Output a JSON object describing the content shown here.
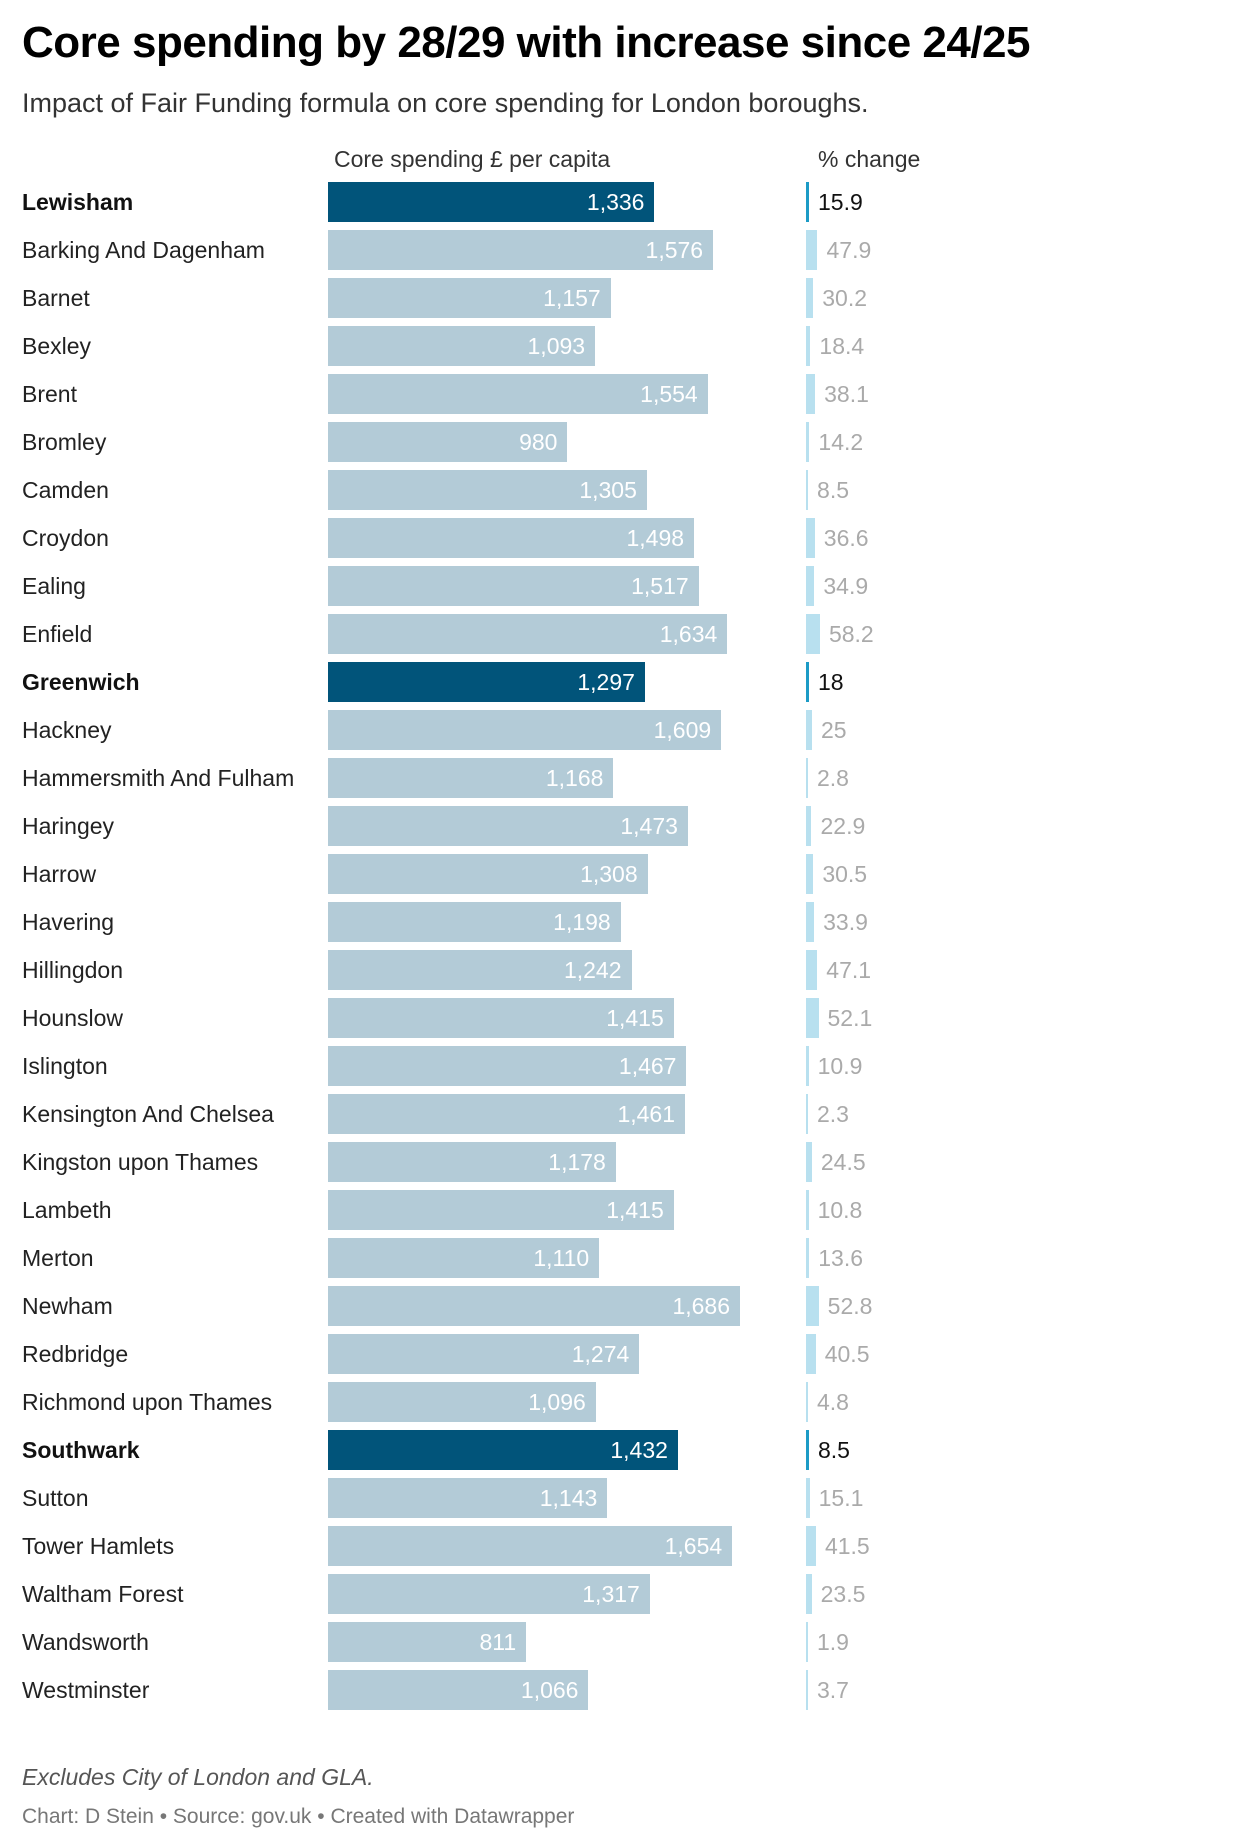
{
  "chart_data": {
    "type": "bar",
    "title": "Core spending by 28/29 with increase since 24/25",
    "subtitle": "Impact of Fair Funding formula on core spending for London boroughs.",
    "columns": [
      "Core spending £ per capita",
      "% change"
    ],
    "categories": [
      "Lewisham",
      "Barking And Dagenham",
      "Barnet",
      "Bexley",
      "Brent",
      "Bromley",
      "Camden",
      "Croydon",
      "Ealing",
      "Enfield",
      "Greenwich",
      "Hackney",
      "Hammersmith And Fulham",
      "Haringey",
      "Harrow",
      "Havering",
      "Hillingdon",
      "Hounslow",
      "Islington",
      "Kensington And Chelsea",
      "Kingston upon Thames",
      "Lambeth",
      "Merton",
      "Newham",
      "Redbridge",
      "Richmond upon Thames",
      "Southwark",
      "Sutton",
      "Tower Hamlets",
      "Waltham Forest",
      "Wandsworth",
      "Westminster"
    ],
    "highlighted": [
      "Lewisham",
      "Greenwich",
      "Southwark"
    ],
    "series": [
      {
        "name": "Core spending £ per capita",
        "values": [
          1336,
          1576,
          1157,
          1093,
          1554,
          980,
          1305,
          1498,
          1517,
          1634,
          1297,
          1609,
          1168,
          1473,
          1308,
          1198,
          1242,
          1415,
          1467,
          1461,
          1178,
          1415,
          1110,
          1686,
          1274,
          1096,
          1432,
          1143,
          1654,
          1317,
          811,
          1066
        ],
        "labels": [
          "1,336",
          "1,576",
          "1,157",
          "1,093",
          "1,554",
          "980",
          "1,305",
          "1,498",
          "1,517",
          "1,634",
          "1,297",
          "1,609",
          "1,168",
          "1,473",
          "1,308",
          "1,198",
          "1,242",
          "1,415",
          "1,467",
          "1,461",
          "1,178",
          "1,415",
          "1,110",
          "1,686",
          "1,274",
          "1,096",
          "1,432",
          "1,143",
          "1,654",
          "1,317",
          "811",
          "1,066"
        ]
      },
      {
        "name": "% change",
        "values": [
          15.9,
          47.9,
          30.2,
          18.4,
          38.1,
          14.2,
          8.5,
          36.6,
          34.9,
          58.2,
          18,
          25,
          2.8,
          22.9,
          30.5,
          33.9,
          47.1,
          52.1,
          10.9,
          2.3,
          24.5,
          10.8,
          13.6,
          52.8,
          40.5,
          4.8,
          8.5,
          15.1,
          41.5,
          23.5,
          1.9,
          3.7
        ],
        "labels": [
          "15.9",
          "47.9",
          "30.2",
          "18.4",
          "38.1",
          "14.2",
          "8.5",
          "36.6",
          "34.9",
          "58.2",
          "18",
          "25",
          "2.8",
          "22.9",
          "30.5",
          "33.9",
          "47.1",
          "52.1",
          "10.9",
          "2.3",
          "24.5",
          "10.8",
          "13.6",
          "52.8",
          "40.5",
          "4.8",
          "8.5",
          "15.1",
          "41.5",
          "23.5",
          "1.9",
          "3.7"
        ]
      }
    ],
    "xlim_spending": [
      0,
      1686
    ],
    "xlim_pct": [
      0,
      60
    ],
    "grid": false,
    "legend": "none",
    "colors": {
      "bar": "#b3cbd7",
      "bar_highlight": "#01547a",
      "pct_bar": "#b8e0ef",
      "pct_bar_highlight": "#1c9bc6"
    }
  },
  "footer": {
    "note": "Excludes City of London and GLA.",
    "credit": "Chart: D Stein • Source: gov.uk • Created with Datawrapper"
  }
}
